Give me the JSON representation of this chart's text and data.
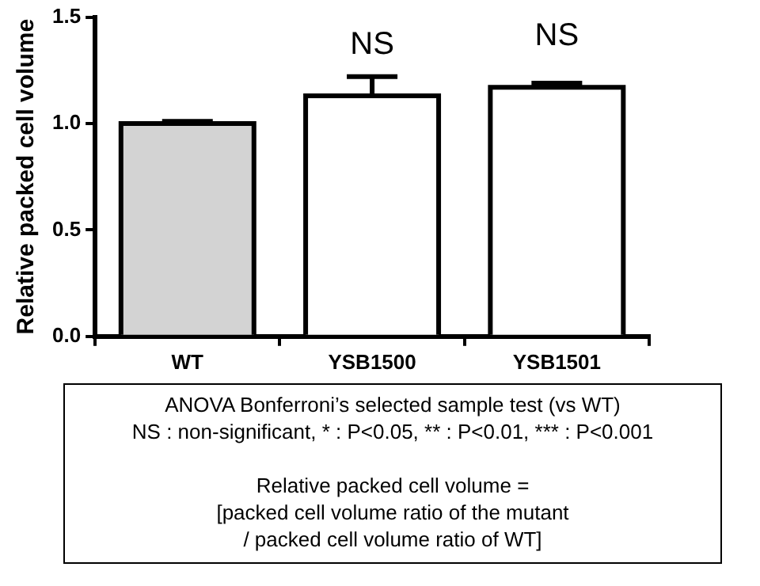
{
  "chart_data": {
    "type": "bar",
    "ylabel": "Relative packed cell volume",
    "categories": [
      "WT",
      "YSB1500",
      "YSB1501"
    ],
    "values": [
      1.0,
      1.13,
      1.17
    ],
    "errors": [
      0.01,
      0.09,
      0.02
    ],
    "colors": [
      "#d3d3d3",
      "#ffffff",
      "#ffffff"
    ],
    "ylim": [
      0,
      1.5
    ],
    "yticks": [
      {
        "value": 0,
        "label": "0.0"
      },
      {
        "value": 0.5,
        "label": "0.5"
      },
      {
        "value": 1,
        "label": "1.0"
      },
      {
        "value": 1.5,
        "label": "1.5"
      }
    ],
    "grid": false,
    "legend": false,
    "annotations": [
      {
        "text": "NS",
        "x": "YSB1500",
        "y": 1.13
      },
      {
        "text": "NS",
        "x": "YSB1501",
        "y": 1.17
      },
      "ANOVA Bonferroni’s selected sample test (vs WT)",
      "NS : non-significant, * : P<0.05, ** : P<0.01, *** : P<0.001",
      "Relative packed cell volume =",
      "[packed cell volume ratio of the mutant",
      "/ packed cell volume ratio of WT]"
    ]
  }
}
